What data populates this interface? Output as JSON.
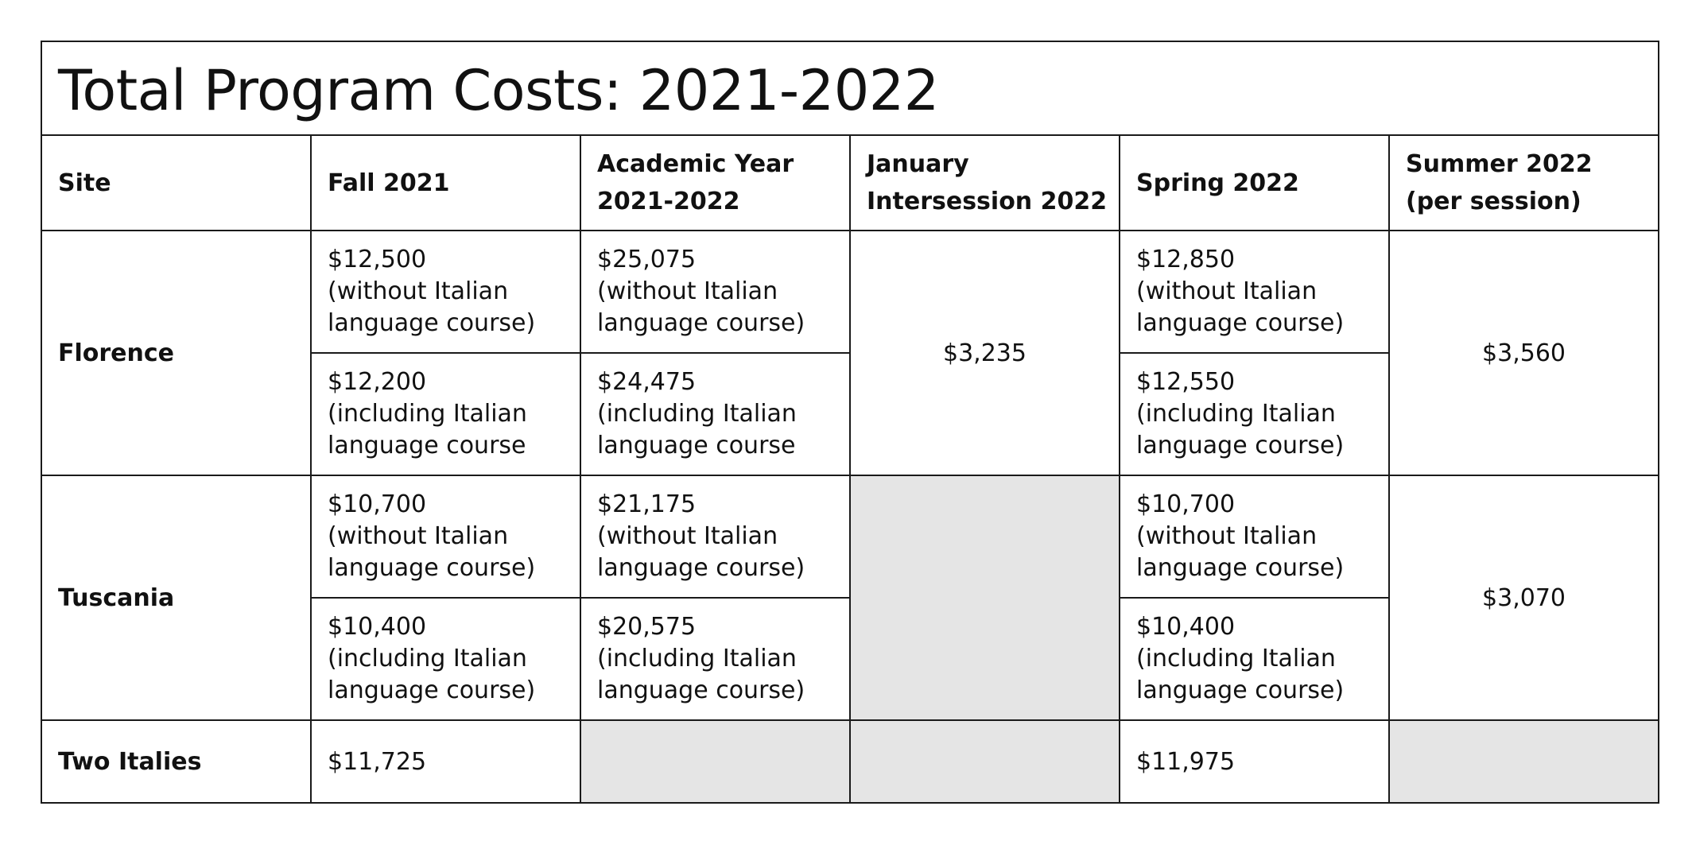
{
  "title": "Total Program Costs: 2021-2022",
  "headers": {
    "site": "Site",
    "fall": "Fall 2021",
    "academic_year": [
      "Academic Year",
      "2021-2022"
    ],
    "january": [
      "January",
      "Intersession 2022"
    ],
    "spring": "Spring 2022",
    "summer": [
      "Summer 2022",
      "(per session)"
    ]
  },
  "florence": {
    "site": "Florence",
    "fall_without": [
      "$12,500",
      "(without Italian",
      "language course)"
    ],
    "fall_including": [
      "$12,200",
      "(including Italian",
      "language course"
    ],
    "academic_without": [
      "$25,075",
      "(without Italian",
      "language course)"
    ],
    "academic_including": [
      "$24,475",
      "(including Italian",
      "language course"
    ],
    "january": "$3,235",
    "spring_without": [
      "$12,850",
      "(without Italian",
      "language course)"
    ],
    "spring_including": [
      "$12,550",
      "(including Italian",
      "language course)"
    ],
    "summer": "$3,560"
  },
  "tuscania": {
    "site": "Tuscania",
    "fall_without": [
      "$10,700",
      "(without Italian",
      "language course)"
    ],
    "fall_including": [
      "$10,400",
      "(including Italian",
      "language course)"
    ],
    "academic_without": [
      "$21,175",
      "(without Italian",
      "language course)"
    ],
    "academic_including": [
      "$20,575",
      "(including Italian",
      "language course)"
    ],
    "spring_without": [
      "$10,700",
      "(without Italian",
      "language course)"
    ],
    "spring_including": [
      "$10,400",
      "(including Italian",
      "language course)"
    ],
    "summer": "$3,070"
  },
  "two_italies": {
    "site": "Two Italies",
    "fall": "$11,725",
    "spring": "$11,975"
  },
  "colors": {
    "unavailable_cell": "#e5e5e5",
    "border": "#1a1a1a"
  }
}
